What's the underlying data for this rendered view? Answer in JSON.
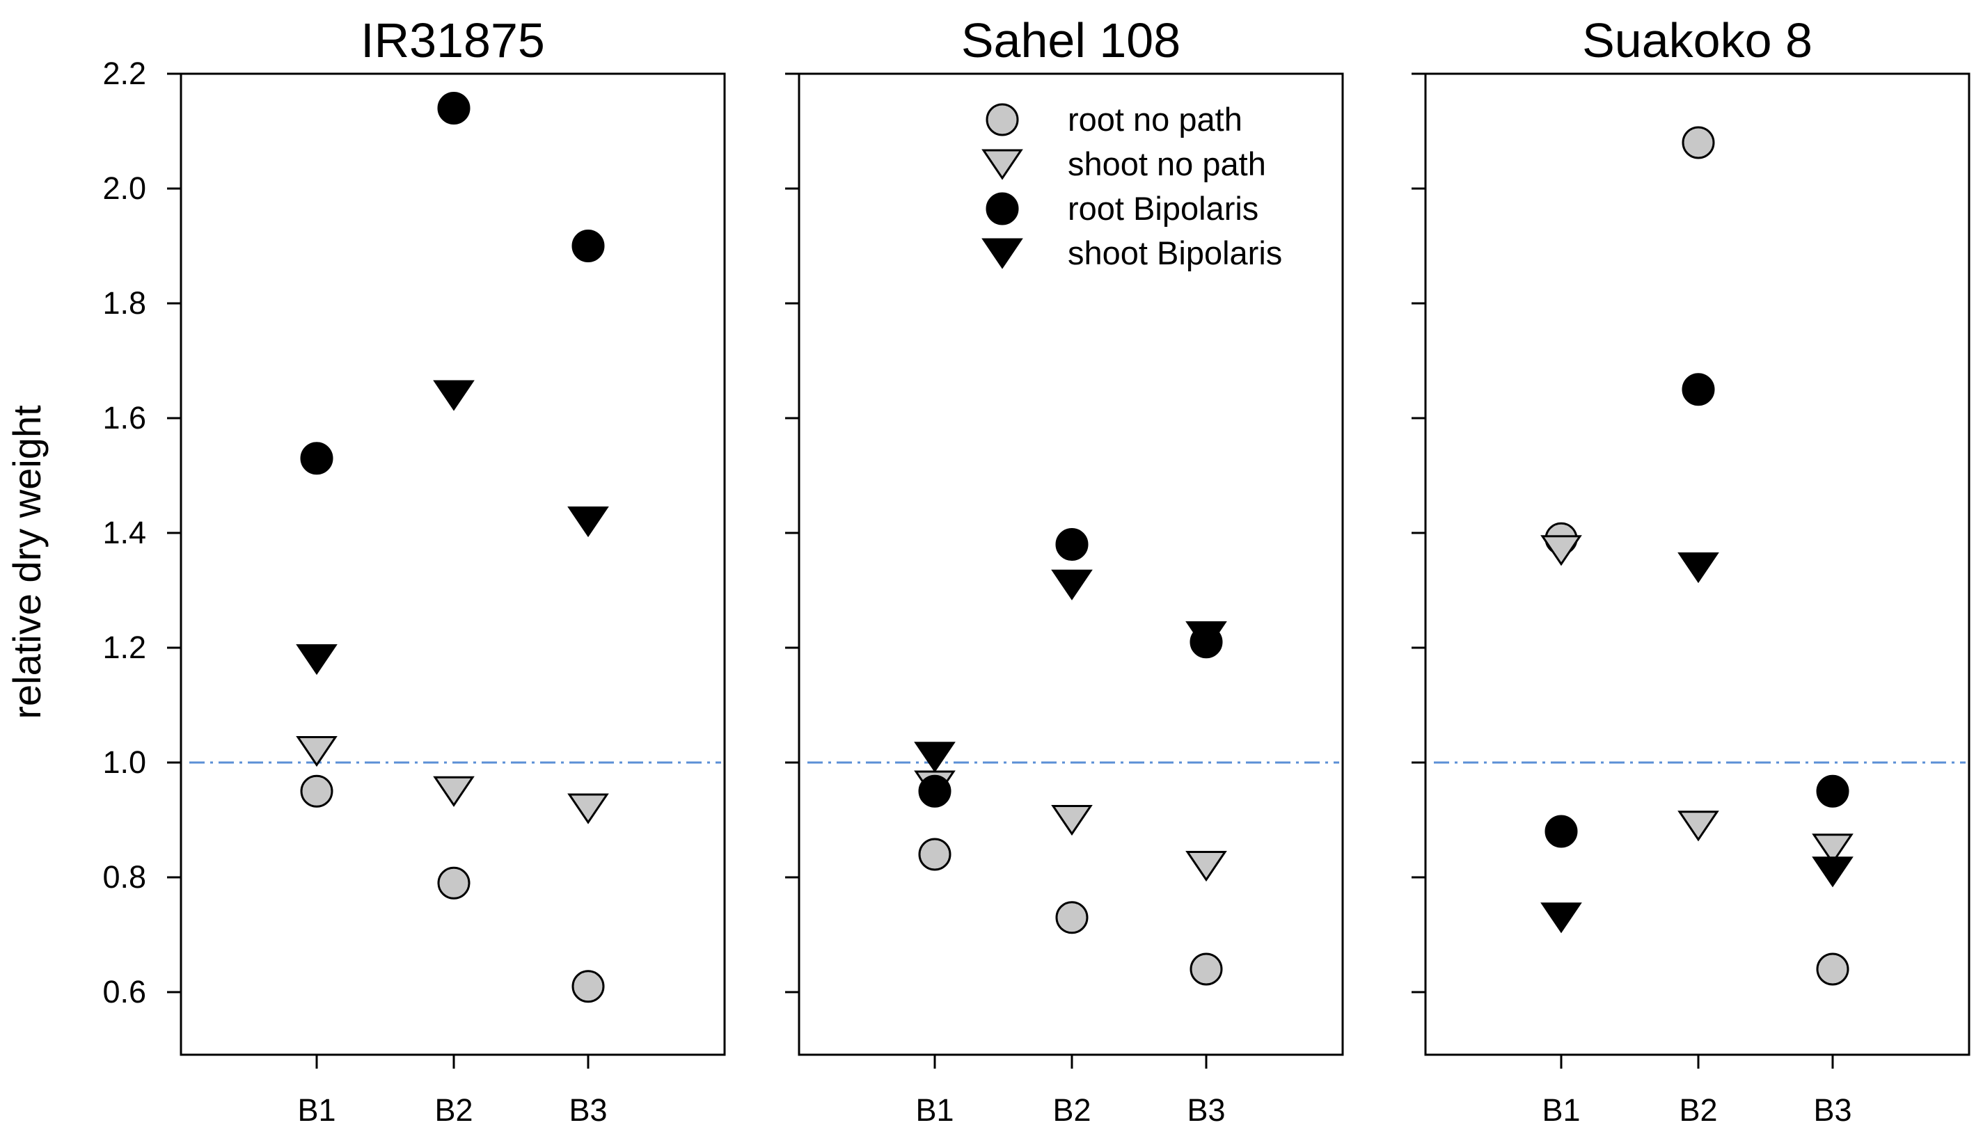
{
  "chart_data": {
    "type": "scatter",
    "ylabel": "relative dry weight",
    "ylim": [
      0.5,
      2.2
    ],
    "yticks": [
      0.6,
      0.8,
      1.0,
      1.2,
      1.4,
      1.6,
      1.8,
      2.0,
      2.2
    ],
    "ytick_labels": [
      "0.6",
      "0.8",
      "1.0",
      "1.2",
      "1.4",
      "1.6",
      "1.8",
      "2.0",
      "2.2"
    ],
    "categories": [
      "B1",
      "B2",
      "B3"
    ],
    "reference_line": {
      "y": 1.0,
      "style": "dash-dot",
      "color": "#5b8fd6"
    },
    "series_styles": [
      {
        "key": "root_no_path",
        "label": "root no path",
        "marker": "circle",
        "fill": "#c8c8c8"
      },
      {
        "key": "shoot_no_path",
        "label": "shoot no path",
        "marker": "triangle-down",
        "fill": "#c8c8c8"
      },
      {
        "key": "root_bipolaris",
        "label": "root Bipolaris",
        "marker": "circle",
        "fill": "#000000"
      },
      {
        "key": "shoot_bipolaris",
        "label": "shoot Bipolaris",
        "marker": "triangle-down",
        "fill": "#000000"
      }
    ],
    "legend_location": "top-right of middle panel",
    "panels": [
      {
        "title": "IR31875",
        "series": {
          "root_no_path": [
            0.95,
            0.79,
            0.61
          ],
          "shoot_no_path": [
            1.02,
            0.95,
            0.92
          ],
          "root_bipolaris": [
            1.53,
            2.14,
            1.9
          ],
          "shoot_bipolaris": [
            1.18,
            1.64,
            1.42
          ]
        }
      },
      {
        "title": "Sahel 108",
        "series": {
          "root_no_path": [
            0.84,
            0.73,
            0.64
          ],
          "shoot_no_path": [
            0.96,
            0.9,
            0.82
          ],
          "root_bipolaris": [
            0.95,
            1.38,
            1.21
          ],
          "shoot_bipolaris": [
            1.01,
            1.31,
            1.22
          ]
        }
      },
      {
        "title": "Suakoko 8",
        "series": {
          "root_no_path": [
            1.39,
            2.08,
            0.64
          ],
          "shoot_no_path": [
            1.37,
            0.89,
            0.85
          ],
          "root_bipolaris": [
            0.88,
            1.65,
            0.95
          ],
          "shoot_bipolaris": [
            0.73,
            1.34,
            0.81
          ]
        }
      }
    ]
  }
}
